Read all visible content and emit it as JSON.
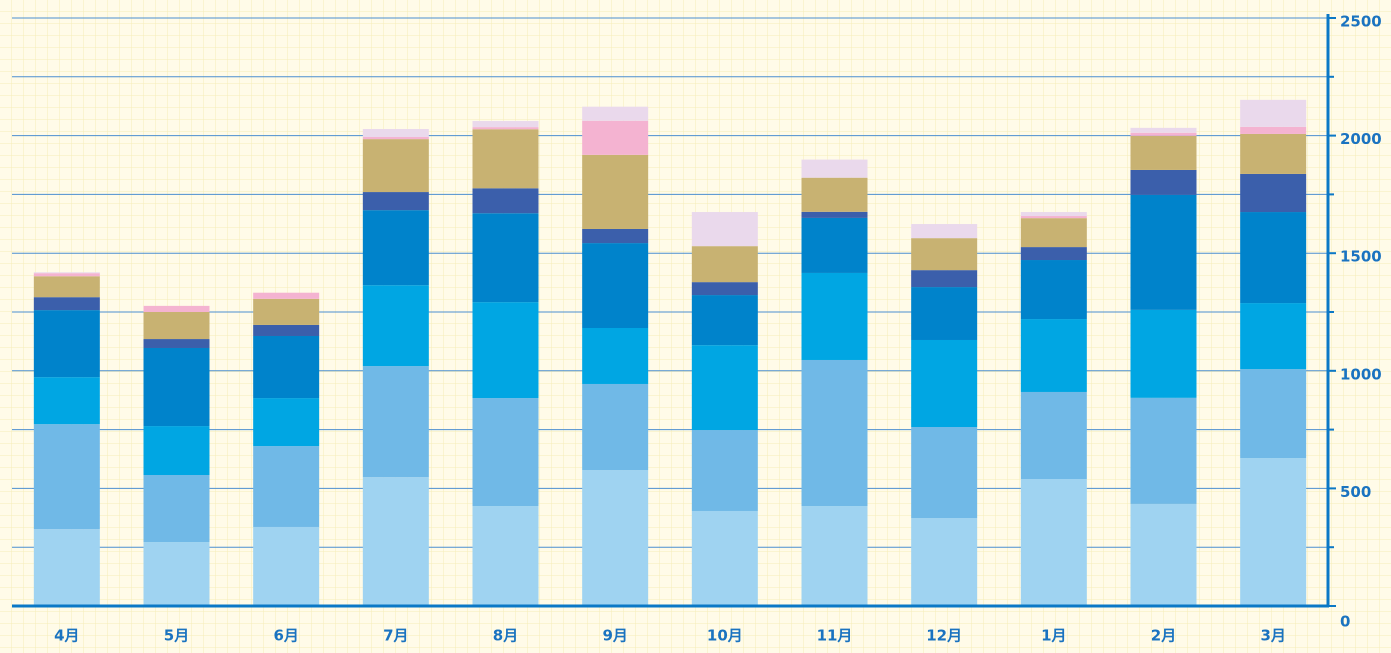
{
  "chart_data": {
    "type": "stacked_bar",
    "categories": [
      "4月",
      "5月",
      "6月",
      "7月",
      "8月",
      "9月",
      "10月",
      "11月",
      "12月",
      "1月",
      "2月",
      "3月"
    ],
    "series": [
      {
        "color": "#9fd3f1",
        "values": [
          327,
          272,
          336,
          548,
          425,
          578,
          404,
          425,
          374,
          540,
          434,
          629
        ]
      },
      {
        "color": "#70b9e7",
        "values": [
          446,
          285,
          344,
          472,
          459,
          366,
          344,
          621,
          387,
          370,
          451,
          378
        ]
      },
      {
        "color": "#00a6e3",
        "values": [
          200,
          208,
          204,
          344,
          408,
          238,
          361,
          370,
          370,
          310,
          374,
          281
        ]
      },
      {
        "color": "#0083cb",
        "values": [
          285,
          332,
          264,
          319,
          378,
          361,
          213,
          234,
          225,
          251,
          489,
          387
        ]
      },
      {
        "color": "#3b5fab",
        "values": [
          55,
          38,
          47,
          77,
          106,
          60,
          55,
          26,
          72,
          55,
          106,
          162
        ]
      },
      {
        "color": "#c8b272",
        "values": [
          89,
          115,
          111,
          225,
          251,
          315,
          153,
          145,
          136,
          123,
          145,
          170
        ]
      },
      {
        "color": "#f4b3d1",
        "values": [
          13,
          26,
          26,
          9,
          9,
          145,
          0,
          0,
          0,
          9,
          13,
          30
        ]
      },
      {
        "color": "#ead9ec",
        "values": [
          4,
          0,
          0,
          34,
          26,
          60,
          145,
          77,
          60,
          17,
          21,
          115
        ]
      }
    ],
    "ylim": [
      0,
      2500
    ],
    "yticks": [
      0,
      500,
      1000,
      1500,
      2000,
      2500
    ],
    "minor_yticks": [
      250,
      750,
      1250,
      1750,
      2250
    ],
    "grid": true,
    "axis_side": "right"
  }
}
